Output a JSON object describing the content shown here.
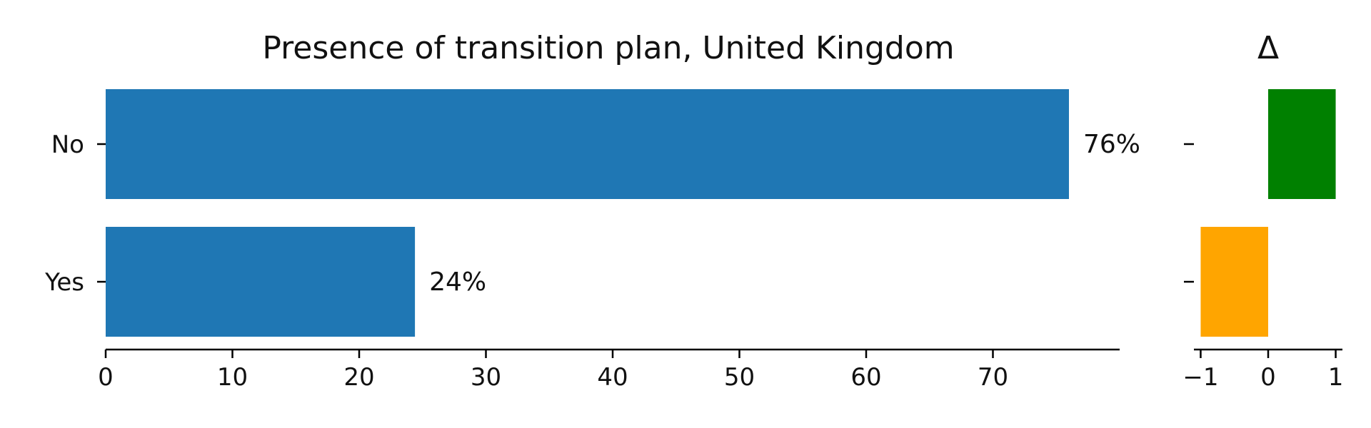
{
  "chart_data": [
    {
      "type": "bar",
      "orientation": "horizontal",
      "title": "Presence of transition plan, United Kingdom",
      "categories": [
        "No",
        "Yes"
      ],
      "values": [
        76,
        24.4
      ],
      "data_labels": [
        "76%",
        "24%"
      ],
      "xlim": [
        0,
        80
      ],
      "xticks": [
        0,
        10,
        20,
        30,
        40,
        50,
        60,
        70
      ],
      "color": "#1f77b4",
      "grid": false
    },
    {
      "type": "bar",
      "orientation": "horizontal",
      "title": "Δ",
      "categories": [
        "No",
        "Yes"
      ],
      "values": [
        1,
        -1
      ],
      "xlim": [
        -1.1,
        1.1
      ],
      "xticks": [
        -1,
        0,
        1
      ],
      "xtick_labels": [
        "−1",
        "0",
        "1"
      ],
      "colors": [
        "#008000",
        "#ffa500"
      ],
      "grid": false
    }
  ]
}
